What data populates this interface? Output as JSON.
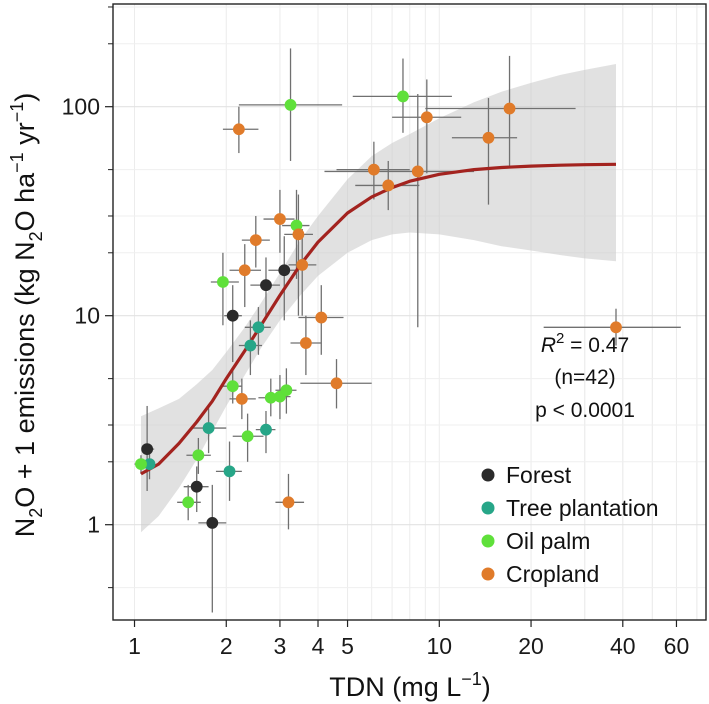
{
  "chart_data": {
    "type": "scatter",
    "x_scale": "log",
    "y_scale": "log",
    "xlim": [
      0.85,
      75
    ],
    "ylim": [
      0.35,
      310
    ],
    "xlabel": {
      "main": "TDN (mg L",
      "sup": "−1",
      "tail": ")"
    },
    "ylabel": {
      "p1": "N",
      "sub1": "2",
      "p2": "O + 1 emissions (kg N",
      "sub2": "2",
      "p3": "O ha",
      "sup1": "−1",
      "p4": " yr",
      "sup2": "−1",
      "p5": ")"
    },
    "x_ticks": [
      1,
      2,
      3,
      4,
      5,
      10,
      20,
      40,
      60
    ],
    "x_tick_labels": [
      "1",
      "2",
      "3",
      "4",
      "5",
      "10",
      "20",
      "40",
      "60"
    ],
    "y_ticks": [
      1,
      10,
      100
    ],
    "y_tick_labels": [
      "1",
      "10",
      "100"
    ],
    "grid": true,
    "legend_position": "bottom-right",
    "colors": {
      "Forest": "#2b2b2b",
      "Tree plantation": "#27a688",
      "Oil palm": "#5fe03a",
      "Cropland": "#e07b2a",
      "fit": "#a3231f",
      "ribbon": "#c9c9c9",
      "errorbar": "#707070"
    },
    "series": [
      {
        "name": "Forest",
        "points": [
          {
            "x": 1.1,
            "y": 2.3,
            "xmin": 1.06,
            "xmax": 1.16,
            "ymin": 1.45,
            "ymax": 3.7
          },
          {
            "x": 1.6,
            "y": 1.52,
            "xmin": 1.45,
            "xmax": 1.75,
            "ymin": 1.15,
            "ymax": 1.9
          },
          {
            "x": 1.8,
            "y": 1.02,
            "xmin": 1.62,
            "xmax": 2.0,
            "ymin": 0.38,
            "ymax": 1.55
          },
          {
            "x": 2.1,
            "y": 10,
            "xmin": 1.97,
            "xmax": 2.25,
            "ymin": 6.0,
            "ymax": 14
          },
          {
            "x": 2.7,
            "y": 14,
            "xmin": 2.4,
            "xmax": 3.0,
            "ymin": 10,
            "ymax": 19
          },
          {
            "x": 3.1,
            "y": 16.5,
            "xmin": 2.75,
            "xmax": 3.45,
            "ymin": 9.5,
            "ymax": 24
          }
        ]
      },
      {
        "name": "Tree plantation",
        "points": [
          {
            "x": 1.12,
            "y": 1.95,
            "xmin": 1.08,
            "xmax": 1.16,
            "ymin": 1.65,
            "ymax": 2.25
          },
          {
            "x": 1.75,
            "y": 2.9,
            "xmin": 1.55,
            "xmax": 2.0,
            "ymin": 2.2,
            "ymax": 3.6
          },
          {
            "x": 2.05,
            "y": 1.8,
            "xmin": 1.85,
            "xmax": 2.25,
            "ymin": 1.3,
            "ymax": 2.5
          },
          {
            "x": 2.4,
            "y": 7.2,
            "xmin": 2.2,
            "xmax": 2.62,
            "ymin": 5.2,
            "ymax": 9.5
          },
          {
            "x": 2.55,
            "y": 8.8,
            "xmin": 2.3,
            "xmax": 2.8,
            "ymin": 6.5,
            "ymax": 11
          },
          {
            "x": 2.7,
            "y": 2.85,
            "xmin": 2.5,
            "xmax": 2.9,
            "ymin": 2.2,
            "ymax": 3.5
          }
        ]
      },
      {
        "name": "Oil palm",
        "points": [
          {
            "x": 1.05,
            "y": 1.95,
            "xmin": 1.0,
            "xmax": 1.1,
            "ymin": 1.75,
            "ymax": 2.15
          },
          {
            "x": 1.5,
            "y": 1.28,
            "xmin": 1.38,
            "xmax": 1.65,
            "ymin": 1.05,
            "ymax": 1.55
          },
          {
            "x": 1.62,
            "y": 2.15,
            "xmin": 1.48,
            "xmax": 1.78,
            "ymin": 1.75,
            "ymax": 2.6
          },
          {
            "x": 1.95,
            "y": 14.5,
            "xmin": 1.78,
            "xmax": 2.2,
            "ymin": 9,
            "ymax": 20
          },
          {
            "x": 2.1,
            "y": 4.6,
            "xmin": 1.95,
            "xmax": 2.25,
            "ymin": 3.8,
            "ymax": 5.6
          },
          {
            "x": 2.35,
            "y": 2.65,
            "xmin": 2.1,
            "xmax": 2.65,
            "ymin": 2.0,
            "ymax": 3.4
          },
          {
            "x": 2.8,
            "y": 4.05,
            "xmin": 2.55,
            "xmax": 3.05,
            "ymin": 3.3,
            "ymax": 5.0
          },
          {
            "x": 3.0,
            "y": 4.1,
            "xmin": 2.75,
            "xmax": 3.25,
            "ymin": 3.2,
            "ymax": 5.2
          },
          {
            "x": 3.15,
            "y": 4.4,
            "xmin": 2.9,
            "xmax": 3.4,
            "ymin": 3.4,
            "ymax": 5.6
          },
          {
            "x": 3.25,
            "y": 102,
            "xmin": 2.2,
            "xmax": 4.8,
            "ymin": 55,
            "ymax": 190
          },
          {
            "x": 3.4,
            "y": 27,
            "xmin": 3.05,
            "xmax": 3.75,
            "ymin": 15,
            "ymax": 40
          },
          {
            "x": 7.6,
            "y": 112,
            "xmin": 5.2,
            "xmax": 11,
            "ymin": 75,
            "ymax": 170
          }
        ]
      },
      {
        "name": "Cropland",
        "points": [
          {
            "x": 2.2,
            "y": 78,
            "xmin": 1.95,
            "xmax": 2.55,
            "ymin": 60,
            "ymax": 100
          },
          {
            "x": 2.25,
            "y": 4.0,
            "xmin": 2.05,
            "xmax": 2.5,
            "ymin": 3.2,
            "ymax": 5.0
          },
          {
            "x": 2.3,
            "y": 16.5,
            "xmin": 2.05,
            "xmax": 2.6,
            "ymin": 11,
            "ymax": 22
          },
          {
            "x": 2.5,
            "y": 23,
            "xmin": 2.25,
            "xmax": 2.78,
            "ymin": 17,
            "ymax": 30
          },
          {
            "x": 3.0,
            "y": 29,
            "xmin": 2.65,
            "xmax": 3.35,
            "ymin": 20,
            "ymax": 40
          },
          {
            "x": 3.2,
            "y": 1.28,
            "xmin": 2.9,
            "xmax": 3.6,
            "ymin": 0.95,
            "ymax": 1.75
          },
          {
            "x": 3.45,
            "y": 24.5,
            "xmin": 3.1,
            "xmax": 3.85,
            "ymin": 10,
            "ymax": 38
          },
          {
            "x": 3.55,
            "y": 17.5,
            "xmin": 3.2,
            "xmax": 3.95,
            "ymin": 10,
            "ymax": 26
          },
          {
            "x": 3.65,
            "y": 7.4,
            "xmin": 3.25,
            "xmax": 4.1,
            "ymin": 5.2,
            "ymax": 10
          },
          {
            "x": 4.1,
            "y": 9.8,
            "xmin": 3.45,
            "xmax": 4.85,
            "ymin": 6.5,
            "ymax": 14
          },
          {
            "x": 4.6,
            "y": 4.75,
            "xmin": 3.5,
            "xmax": 6.0,
            "ymin": 3.6,
            "ymax": 6.2
          },
          {
            "x": 6.1,
            "y": 50,
            "xmin": 4.6,
            "xmax": 8.0,
            "ymin": 36,
            "ymax": 68
          },
          {
            "x": 6.8,
            "y": 42,
            "xmin": 5.3,
            "xmax": 8.6,
            "ymin": 32,
            "ymax": 55
          },
          {
            "x": 8.5,
            "y": 49,
            "xmin": 4.2,
            "xmax": 13,
            "ymin": 8.8,
            "ymax": 115
          },
          {
            "x": 9.1,
            "y": 89,
            "xmin": 7.0,
            "xmax": 11.8,
            "ymin": 48,
            "ymax": 135
          },
          {
            "x": 14.5,
            "y": 71,
            "xmin": 11,
            "xmax": 18,
            "ymin": 34,
            "ymax": 110
          },
          {
            "x": 17,
            "y": 98,
            "xmin": 9.0,
            "xmax": 28,
            "ymin": 52,
            "ymax": 175
          },
          {
            "x": 38,
            "y": 8.8,
            "xmin": 22,
            "xmax": 62,
            "ymin": 7.2,
            "ymax": 10.8
          }
        ]
      }
    ],
    "fit": {
      "x": [
        1.05,
        1.2,
        1.4,
        1.6,
        1.8,
        2.0,
        2.3,
        2.6,
        3.0,
        3.5,
        4.0,
        5.0,
        6.0,
        7.0,
        8.0,
        10,
        13,
        16,
        20,
        25,
        30,
        38
      ],
      "y": [
        1.75,
        1.95,
        2.45,
        3.1,
        3.9,
        5.0,
        6.8,
        9.0,
        12.5,
        17.5,
        22.5,
        31,
        37,
        41,
        44,
        47.5,
        50,
        51.2,
        52,
        52.5,
        52.8,
        53
      ],
      "lower": [
        0.92,
        1.1,
        1.5,
        2.05,
        2.8,
        3.7,
        5.2,
        7.0,
        9.5,
        12.5,
        15.5,
        20,
        23,
        24.5,
        25,
        24.5,
        23,
        21.5,
        20.5,
        19.5,
        18.8,
        18.2
      ],
      "upper": [
        3.3,
        3.6,
        4.0,
        4.7,
        5.5,
        6.7,
        8.8,
        11.5,
        16,
        23,
        30,
        45,
        58,
        67,
        74,
        88,
        105,
        118,
        130,
        142,
        150,
        160
      ]
    },
    "annotations": {
      "r2_symbol": "R",
      "r2_sup": "2",
      "r2_value": " = 0.47",
      "n_text": "(n=42)",
      "p_text": "p < 0.0001"
    }
  }
}
